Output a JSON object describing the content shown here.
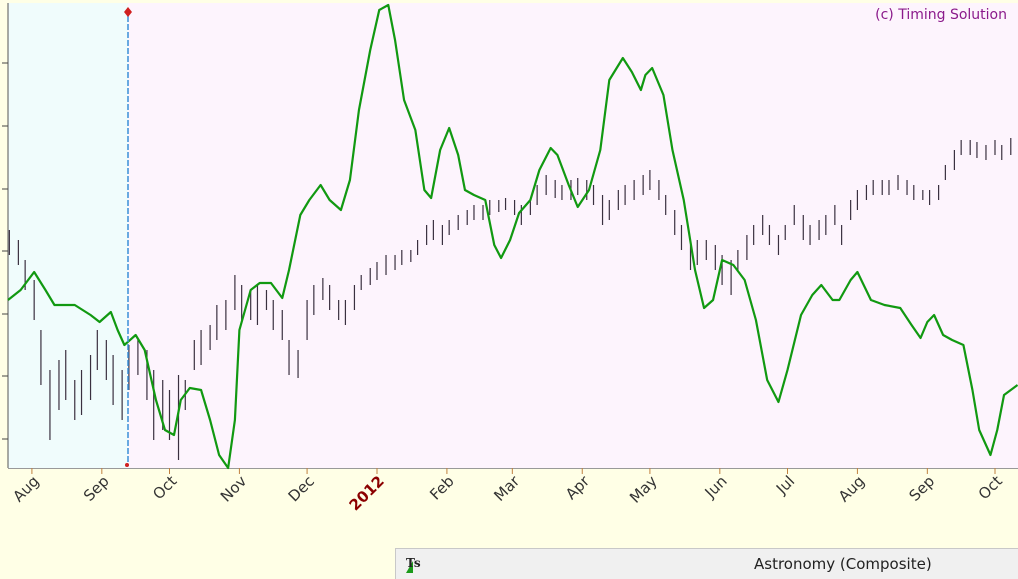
{
  "chart_data": {
    "type": "combo",
    "annotation": "(c) Timing Solution",
    "xlim": [
      -10.6,
      437.2
    ],
    "xticks": [
      {
        "value": 0,
        "label": "Aug"
      },
      {
        "value": 31,
        "label": "Sep"
      },
      {
        "value": 61,
        "label": "Oct"
      },
      {
        "value": 92,
        "label": "Nov"
      },
      {
        "value": 122,
        "label": "Dec"
      },
      {
        "value": 153,
        "label": "2012"
      },
      {
        "value": 184,
        "label": "Feb"
      },
      {
        "value": 213,
        "label": "Mar"
      },
      {
        "value": 244,
        "label": "Apr"
      },
      {
        "value": 274,
        "label": "May"
      },
      {
        "value": 305,
        "label": "Jun"
      },
      {
        "value": 335,
        "label": "Jul"
      },
      {
        "value": 366,
        "label": "Aug"
      },
      {
        "value": 397,
        "label": "Sep"
      },
      {
        "value": 427,
        "label": "Oct"
      }
    ],
    "year_tick_color": "#8b0000",
    "ylim": [
      0,
      465
    ],
    "yticks": [
      29,
      92,
      154,
      217,
      279,
      342,
      405
    ],
    "series": [
      {
        "type": "range_bar",
        "color": "#3a3040",
        "x": [
          -10,
          -6,
          -3,
          1,
          4,
          8,
          12,
          15,
          19,
          22,
          26,
          29,
          33,
          36,
          40,
          43,
          47,
          51,
          54,
          58,
          61,
          65,
          68,
          72,
          75,
          79,
          82,
          86,
          90,
          93,
          97,
          100,
          104,
          107,
          111,
          114,
          118,
          122,
          125,
          129,
          132,
          136,
          139,
          143,
          146,
          150,
          153,
          157,
          161,
          164,
          168,
          171,
          175,
          178,
          182,
          185,
          189,
          193,
          196,
          200,
          203,
          207,
          210,
          214,
          217,
          221,
          224,
          228,
          232,
          235,
          239,
          242,
          246,
          249,
          253,
          256,
          260,
          263,
          267,
          271,
          274,
          278,
          281,
          285,
          288,
          292,
          295,
          299,
          303,
          306,
          310,
          313,
          317,
          320,
          324,
          327,
          331,
          334,
          338,
          342,
          345,
          349,
          352,
          356,
          359,
          363,
          366,
          370,
          373,
          377,
          380,
          384,
          388,
          391,
          395,
          398,
          402,
          405,
          409,
          412,
          416,
          419,
          423,
          427,
          430,
          434
        ],
        "high": [
          238,
          228,
          208,
          188,
          138,
          98,
          108,
          118,
          88,
          98,
          113,
          138,
          128,
          113,
          98,
          123,
          128,
          118,
          98,
          88,
          78,
          93,
          88,
          128,
          138,
          143,
          163,
          168,
          193,
          183,
          178,
          183,
          178,
          168,
          158,
          128,
          118,
          168,
          183,
          190,
          183,
          168,
          168,
          183,
          193,
          200,
          206,
          213,
          213,
          218,
          218,
          228,
          243,
          248,
          243,
          248,
          253,
          258,
          263,
          263,
          268,
          268,
          270,
          268,
          263,
          268,
          283,
          293,
          288,
          283,
          288,
          290,
          288,
          283,
          273,
          268,
          278,
          283,
          288,
          293,
          298,
          288,
          273,
          258,
          243,
          223,
          228,
          228,
          223,
          213,
          208,
          218,
          233,
          243,
          253,
          243,
          233,
          243,
          263,
          253,
          243,
          248,
          253,
          263,
          243,
          268,
          278,
          283,
          288,
          288,
          288,
          293,
          288,
          283,
          278,
          278,
          283,
          303,
          318,
          328,
          328,
          326,
          323,
          328,
          323,
          330
        ],
        "low": [
          213,
          203,
          178,
          148,
          83,
          28,
          58,
          68,
          48,
          53,
          68,
          98,
          88,
          63,
          48,
          78,
          93,
          68,
          28,
          38,
          28,
          8,
          58,
          98,
          103,
          118,
          128,
          138,
          158,
          148,
          148,
          143,
          158,
          138,
          128,
          93,
          90,
          128,
          153,
          168,
          158,
          148,
          143,
          158,
          178,
          183,
          188,
          193,
          198,
          203,
          206,
          213,
          223,
          228,
          223,
          233,
          238,
          243,
          248,
          248,
          253,
          256,
          258,
          253,
          243,
          253,
          263,
          273,
          270,
          268,
          268,
          273,
          268,
          263,
          243,
          248,
          258,
          263,
          268,
          273,
          278,
          268,
          253,
          233,
          218,
          198,
          203,
          208,
          198,
          183,
          173,
          198,
          208,
          223,
          233,
          223,
          213,
          228,
          243,
          228,
          223,
          228,
          233,
          243,
          223,
          248,
          258,
          268,
          273,
          273,
          273,
          278,
          273,
          268,
          268,
          263,
          268,
          288,
          298,
          313,
          313,
          310,
          308,
          313,
          308,
          313
        ]
      },
      {
        "type": "line",
        "color": "#119911",
        "x": [
          -10.6,
          -5,
          1,
          6,
          10,
          19,
          26,
          30,
          35,
          38,
          41,
          46,
          50,
          55,
          59,
          63,
          66,
          70,
          75,
          79,
          83,
          87,
          90,
          92,
          97,
          101,
          106,
          111,
          114,
          119,
          123,
          128,
          132,
          137,
          141,
          145,
          150,
          154,
          158,
          161,
          165,
          170,
          174,
          177,
          181,
          185,
          189,
          192,
          196,
          201,
          205,
          208,
          212,
          216,
          221,
          225,
          230,
          233,
          238,
          242,
          247,
          252,
          256,
          262,
          266,
          270,
          272,
          275,
          280,
          284,
          289,
          294,
          298,
          302,
          306,
          311,
          316,
          321,
          326,
          331,
          335,
          341,
          346,
          350,
          355,
          358,
          363,
          366,
          372,
          378,
          385,
          390,
          394,
          397,
          400,
          404,
          408,
          413,
          417,
          420,
          425,
          428,
          431,
          437
        ],
        "values": [
          168,
          178,
          196,
          178,
          163,
          163,
          153,
          146,
          156,
          138,
          123,
          133,
          118,
          68,
          38,
          33,
          68,
          80,
          78,
          48,
          13,
          0,
          48,
          138,
          178,
          185,
          185,
          170,
          198,
          253,
          268,
          283,
          268,
          258,
          288,
          358,
          418,
          458,
          463,
          428,
          368,
          338,
          278,
          270,
          318,
          340,
          313,
          278,
          273,
          268,
          223,
          210,
          228,
          255,
          268,
          298,
          320,
          313,
          283,
          261,
          278,
          318,
          388,
          410,
          396,
          378,
          393,
          400,
          373,
          318,
          268,
          198,
          160,
          168,
          208,
          203,
          188,
          148,
          88,
          66,
          98,
          153,
          173,
          183,
          168,
          168,
          188,
          196,
          168,
          163,
          160,
          143,
          130,
          146,
          153,
          133,
          128,
          123,
          78,
          38,
          13,
          38,
          73,
          83
        ]
      }
    ]
  },
  "status_bar": {
    "icon_text": "Ts",
    "label": "Astronomy (Composite)"
  }
}
